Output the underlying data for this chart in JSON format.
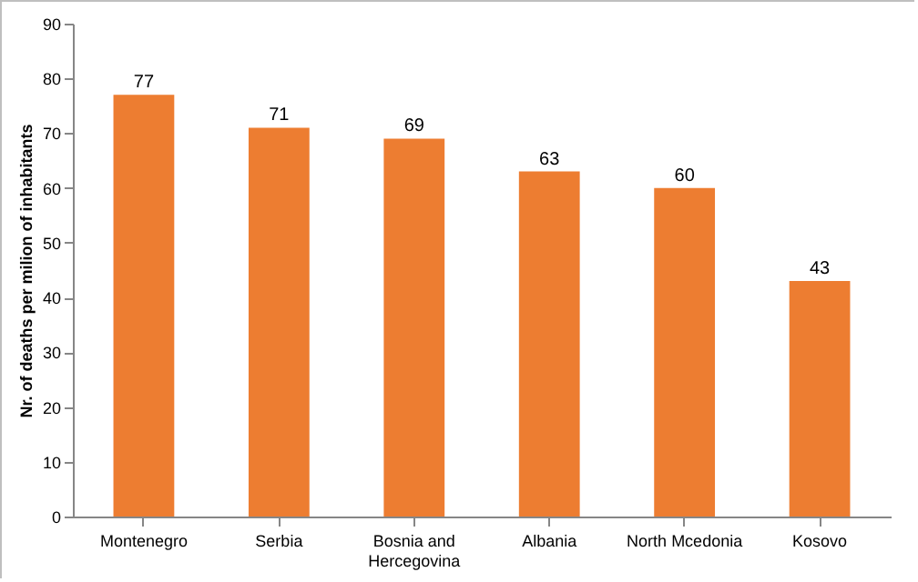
{
  "chart_data": {
    "type": "bar",
    "ylabel": "Nr. of deaths per milion of inhabitants",
    "categories": [
      "Montenegro",
      "Serbia",
      "Bosnia and Hercegovina",
      "Albania",
      "North Mcedonia",
      "Kosovo"
    ],
    "values": [
      77,
      71,
      69,
      63,
      60,
      43
    ],
    "color": "#ed7d31",
    "ylim": [
      0,
      90
    ],
    "yticks": [
      0,
      10,
      20,
      30,
      40,
      50,
      60,
      70,
      80,
      90
    ],
    "grid": false,
    "data_labels": true
  }
}
